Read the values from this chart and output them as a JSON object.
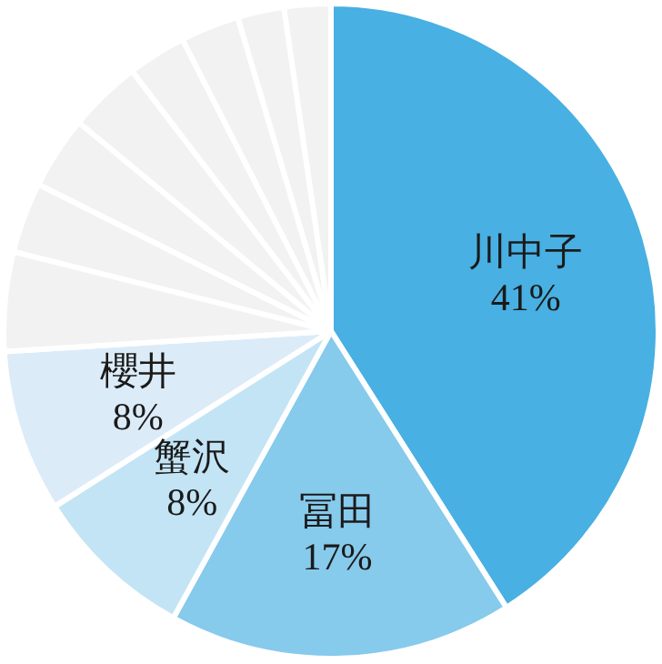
{
  "chart_data": {
    "type": "pie",
    "categories": [
      "川中子",
      "冨田",
      "蟹沢",
      "櫻井",
      null,
      null,
      null,
      null,
      null,
      null,
      null,
      null
    ],
    "values": [
      41,
      17,
      8,
      8,
      4.9,
      3.5,
      3.6,
      3.6,
      2.9,
      2.9,
      2.3,
      2.3
    ],
    "colors": [
      "#48b0e2",
      "#86caec",
      "#c3e4f5",
      "#dcebf8",
      "#f2f2f2",
      "#f2f2f2",
      "#f2f2f2",
      "#f2f2f2",
      "#f2f2f2",
      "#f2f2f2",
      "#f2f2f2",
      "#f2f2f2"
    ],
    "value_labels": [
      "41%",
      "17%",
      "8%",
      "8%",
      null,
      null,
      null,
      null,
      null,
      null,
      null,
      null
    ]
  }
}
